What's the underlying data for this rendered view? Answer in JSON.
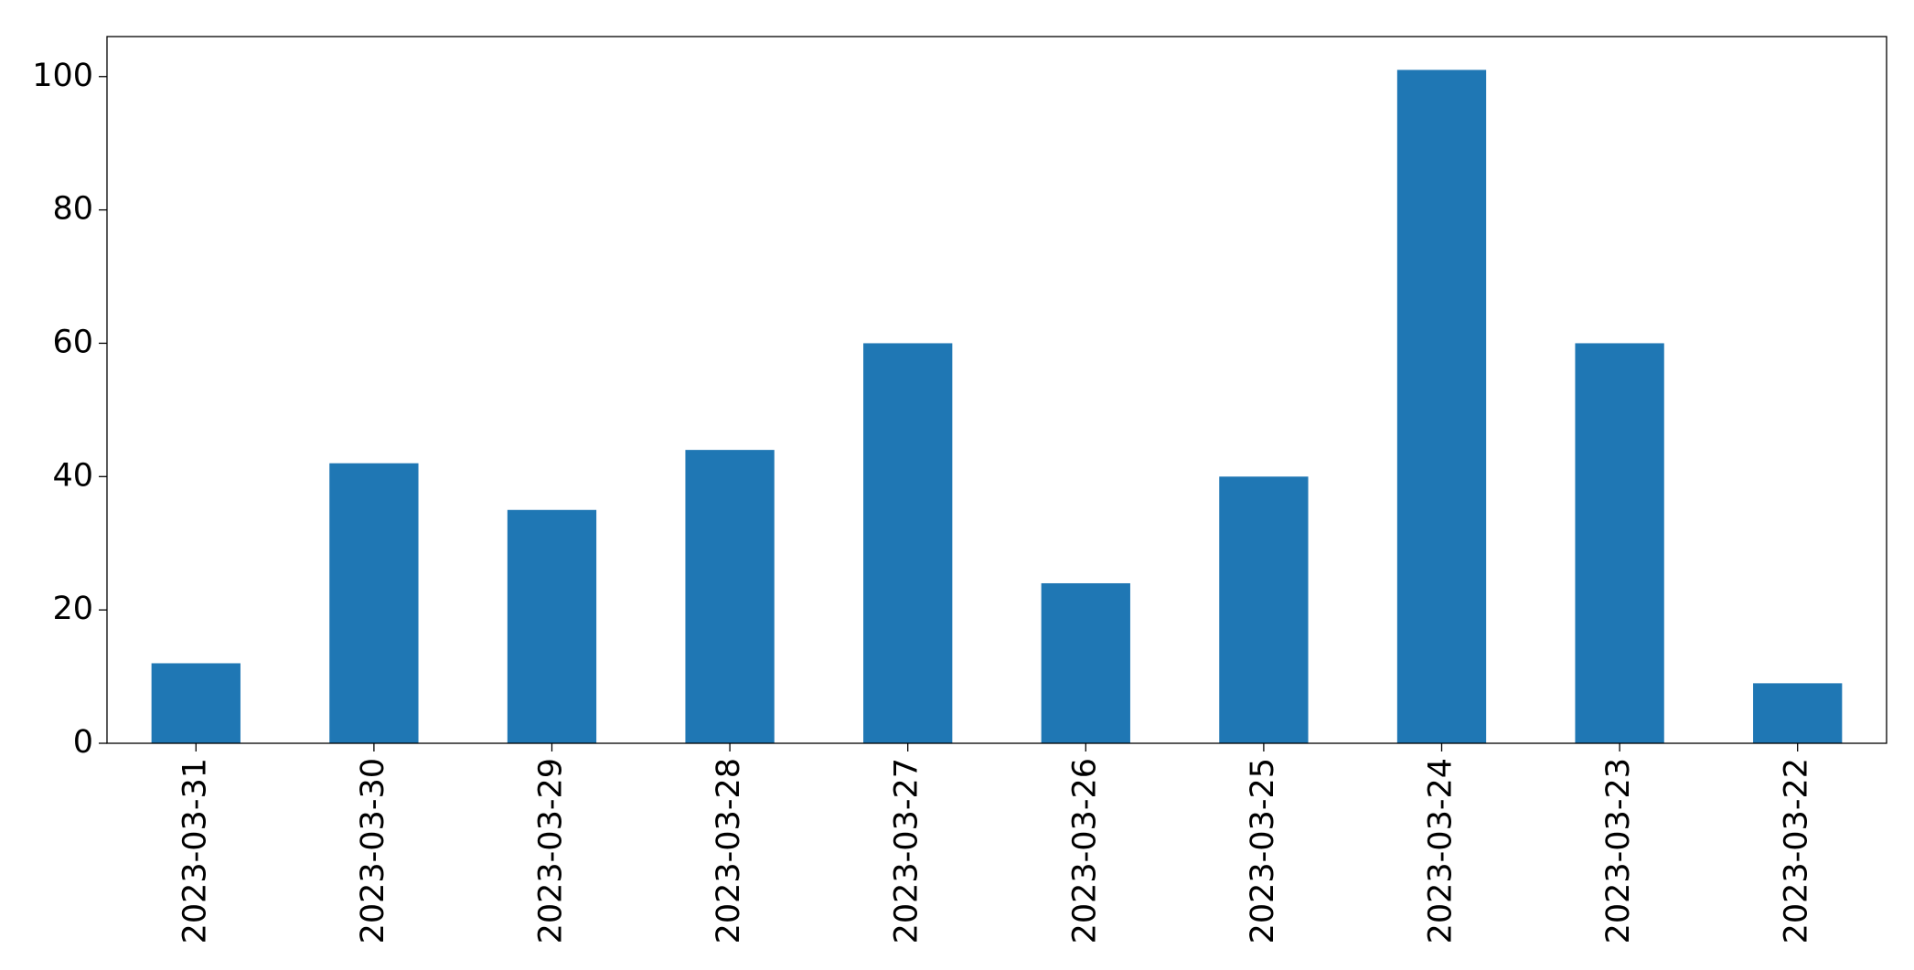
{
  "chart_data": {
    "type": "bar",
    "categories": [
      "2023-03-31",
      "2023-03-30",
      "2023-03-29",
      "2023-03-28",
      "2023-03-27",
      "2023-03-26",
      "2023-03-25",
      "2023-03-24",
      "2023-03-23",
      "2023-03-22"
    ],
    "values": [
      12,
      42,
      35,
      44,
      60,
      24,
      40,
      101,
      60,
      9
    ],
    "color": "#1f77b4",
    "ylim": [
      0,
      106
    ],
    "yticks": [
      0,
      20,
      40,
      60,
      80,
      100
    ],
    "grid": false
  }
}
